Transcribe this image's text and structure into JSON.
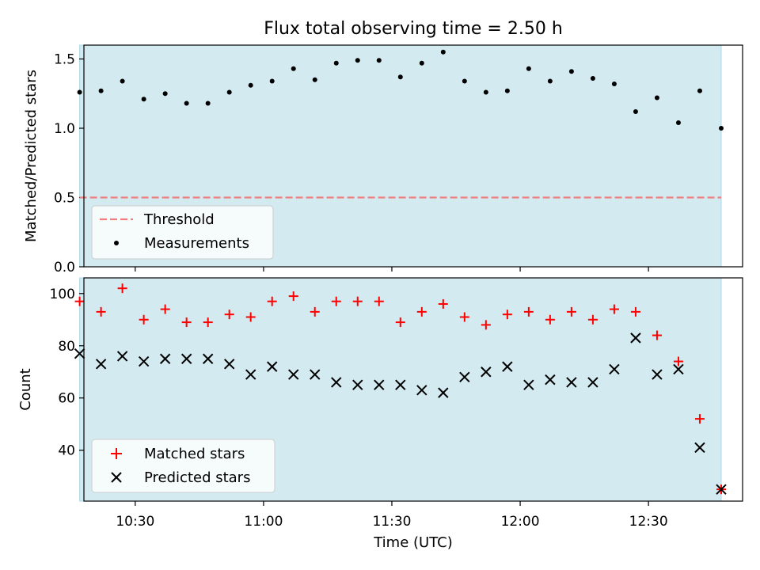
{
  "chart_data": {
    "title": "Flux total observing time = 2.50 h",
    "xlabel": "Time (UTC)",
    "x_range": [
      "10:18",
      "12:52"
    ],
    "x_ticks": [
      "10:30",
      "11:00",
      "11:30",
      "12:00",
      "12:30"
    ],
    "shaded_interval": [
      "10:17",
      "12:47"
    ],
    "times": [
      "10:17",
      "10:22",
      "10:27",
      "10:32",
      "10:37",
      "10:42",
      "10:47",
      "10:52",
      "10:57",
      "11:02",
      "11:07",
      "11:12",
      "11:17",
      "11:22",
      "11:27",
      "11:32",
      "11:37",
      "11:42",
      "11:47",
      "11:52",
      "11:57",
      "12:02",
      "12:07",
      "12:12",
      "12:17",
      "12:22",
      "12:27",
      "12:32",
      "12:37",
      "12:42",
      "12:47"
    ],
    "panels": [
      {
        "type": "scatter",
        "ylabel": "Matched/Predicted stars",
        "ylim": [
          0,
          1.6
        ],
        "y_ticks": [
          "0.0",
          "0.5",
          "1.0",
          "1.5"
        ],
        "legend": "lower-left",
        "threshold": {
          "name": "Threshold",
          "value": 0.5,
          "color": "#f08080"
        },
        "series": [
          {
            "name": "Measurements",
            "marker": "dot",
            "color": "#000000",
            "values": [
              1.26,
              1.27,
              1.34,
              1.21,
              1.25,
              1.18,
              1.18,
              1.26,
              1.31,
              1.34,
              1.43,
              1.35,
              1.47,
              1.49,
              1.49,
              1.37,
              1.47,
              1.55,
              1.34,
              1.26,
              1.27,
              1.43,
              1.34,
              1.41,
              1.36,
              1.32,
              1.12,
              1.22,
              1.04,
              1.27,
              1.0
            ]
          }
        ]
      },
      {
        "type": "scatter",
        "ylabel": "Count",
        "ylim": [
          20.5,
          106
        ],
        "y_ticks": [
          "40",
          "60",
          "80",
          "100"
        ],
        "legend": "lower-left",
        "series": [
          {
            "name": "Matched stars",
            "marker": "plus",
            "color": "#ff0000",
            "values": [
              97,
              93,
              102,
              90,
              94,
              89,
              89,
              92,
              91,
              97,
              99,
              93,
              97,
              97,
              97,
              89,
              93,
              96,
              91,
              88,
              92,
              93,
              90,
              93,
              90,
              94,
              93,
              84,
              74,
              52,
              25
            ]
          },
          {
            "name": "Predicted stars",
            "marker": "x",
            "color": "#000000",
            "values": [
              77,
              73,
              76,
              74,
              75,
              75,
              75,
              73,
              69,
              72,
              69,
              69,
              66,
              65,
              65,
              65,
              63,
              62,
              68,
              70,
              72,
              65,
              67,
              66,
              66,
              71,
              83,
              69,
              71,
              41,
              25
            ]
          }
        ]
      }
    ]
  }
}
